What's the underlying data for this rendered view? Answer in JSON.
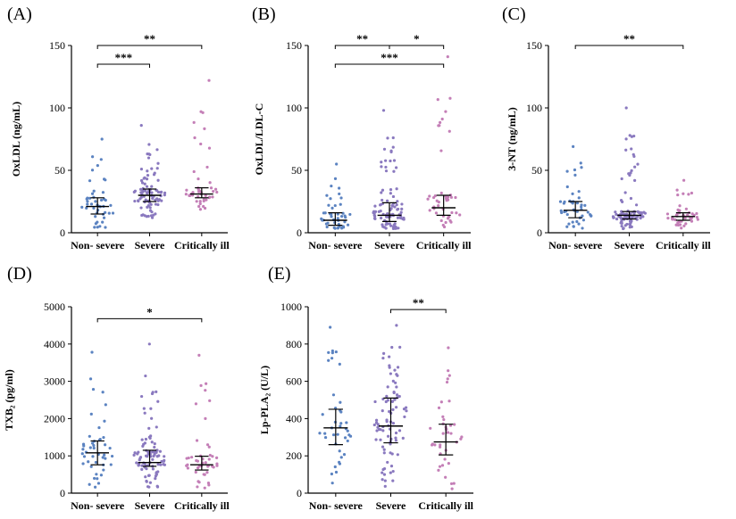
{
  "colors": {
    "non_severe": "#5b83c1",
    "severe": "#8a79bf",
    "critically_ill": "#c47fb7",
    "axis": "#000000"
  },
  "chart_data": [
    {
      "panel": "(A)",
      "type": "scatter",
      "ylabel": "OxLDL (ng/mL)",
      "ylim": [
        0,
        150
      ],
      "yticks": [
        "0",
        "50",
        "100",
        "150"
      ],
      "categories": [
        "Non- severe",
        "Severe",
        "Critically ill"
      ],
      "series": [
        {
          "name": "Non- severe",
          "n": 45,
          "median": 21,
          "q1": 15,
          "q3": 28,
          "max": 75
        },
        {
          "name": "Severe",
          "n": 90,
          "median": 30,
          "q1": 25,
          "q3": 35,
          "max": 86
        },
        {
          "name": "Critically ill",
          "n": 45,
          "median": 31,
          "q1": 28,
          "q3": 36,
          "max": 122
        }
      ],
      "significance": [
        {
          "from": 0,
          "to": 2,
          "y": 150,
          "label": "**"
        },
        {
          "from": 0,
          "to": 1,
          "y": 135,
          "label": "***"
        }
      ]
    },
    {
      "panel": "(B)",
      "type": "scatter",
      "ylabel": "OxLDL/LDL-C",
      "ylim": [
        0,
        150
      ],
      "yticks": [
        "0",
        "50",
        "100",
        "150"
      ],
      "categories": [
        "Non- severe",
        "Severe",
        "Critically ill"
      ],
      "series": [
        {
          "name": "Non- severe",
          "n": 45,
          "median": 10,
          "q1": 6,
          "q3": 16,
          "max": 55
        },
        {
          "name": "Severe",
          "n": 90,
          "median": 14,
          "q1": 9,
          "q3": 24,
          "max": 98
        },
        {
          "name": "Critically ill",
          "n": 45,
          "median": 20,
          "q1": 14,
          "q3": 30,
          "max": 141
        }
      ],
      "significance": [
        {
          "from": 0,
          "to": 1,
          "y": 150,
          "label": "**"
        },
        {
          "from": 1,
          "to": 2,
          "y": 150,
          "label": "*"
        },
        {
          "from": 0,
          "to": 2,
          "y": 135,
          "label": "***"
        }
      ]
    },
    {
      "panel": "(C)",
      "type": "scatter",
      "ylabel": "3-NT (ng/mL)",
      "ylim": [
        0,
        150
      ],
      "yticks": [
        "0",
        "50",
        "100",
        "150"
      ],
      "categories": [
        "Non- severe",
        "Severe",
        "Critically ill"
      ],
      "series": [
        {
          "name": "Non- severe",
          "n": 45,
          "median": 18,
          "q1": 12,
          "q3": 25,
          "max": 69
        },
        {
          "name": "Severe",
          "n": 90,
          "median": 14,
          "q1": 11,
          "q3": 17,
          "max": 100
        },
        {
          "name": "Critically ill",
          "n": 45,
          "median": 13,
          "q1": 10,
          "q3": 16,
          "max": 42
        }
      ],
      "significance": [
        {
          "from": 0,
          "to": 2,
          "y": 150,
          "label": "**"
        }
      ]
    },
    {
      "panel": "(D)",
      "type": "scatter",
      "ylabel": "TXB₂ (pg/ml)",
      "ylim": [
        0,
        5000
      ],
      "yticks": [
        "0",
        "1000",
        "2000",
        "3000",
        "4000",
        "5000"
      ],
      "categories": [
        "Non- severe",
        "Severe",
        "Critically ill"
      ],
      "series": [
        {
          "name": "Non- severe",
          "n": 45,
          "median": 1080,
          "q1": 760,
          "q3": 1400,
          "max": 3780
        },
        {
          "name": "Severe",
          "n": 90,
          "median": 820,
          "q1": 720,
          "q3": 1150,
          "max": 4000
        },
        {
          "name": "Critically ill",
          "n": 45,
          "median": 760,
          "q1": 620,
          "q3": 990,
          "max": 3700
        }
      ],
      "significance": [
        {
          "from": 0,
          "to": 2,
          "y": 4680,
          "label": "*"
        }
      ]
    },
    {
      "panel": "(E)",
      "type": "scatter",
      "ylabel": "Lp-PLA₂ (U/L)",
      "ylim": [
        0,
        1000
      ],
      "yticks": [
        "0",
        "200",
        "400",
        "600",
        "800",
        "1000"
      ],
      "categories": [
        "Non- severe",
        "Severe",
        "Critically ill"
      ],
      "series": [
        {
          "name": "Non- severe",
          "n": 40,
          "median": 350,
          "q1": 260,
          "q3": 450,
          "max": 890
        },
        {
          "name": "Severe",
          "n": 85,
          "median": 360,
          "q1": 270,
          "q3": 510,
          "max": 900
        },
        {
          "name": "Critically ill",
          "n": 40,
          "median": 275,
          "q1": 205,
          "q3": 370,
          "max": 780
        }
      ],
      "significance": [
        {
          "from": 1,
          "to": 2,
          "y": 985,
          "label": "**"
        }
      ]
    }
  ]
}
